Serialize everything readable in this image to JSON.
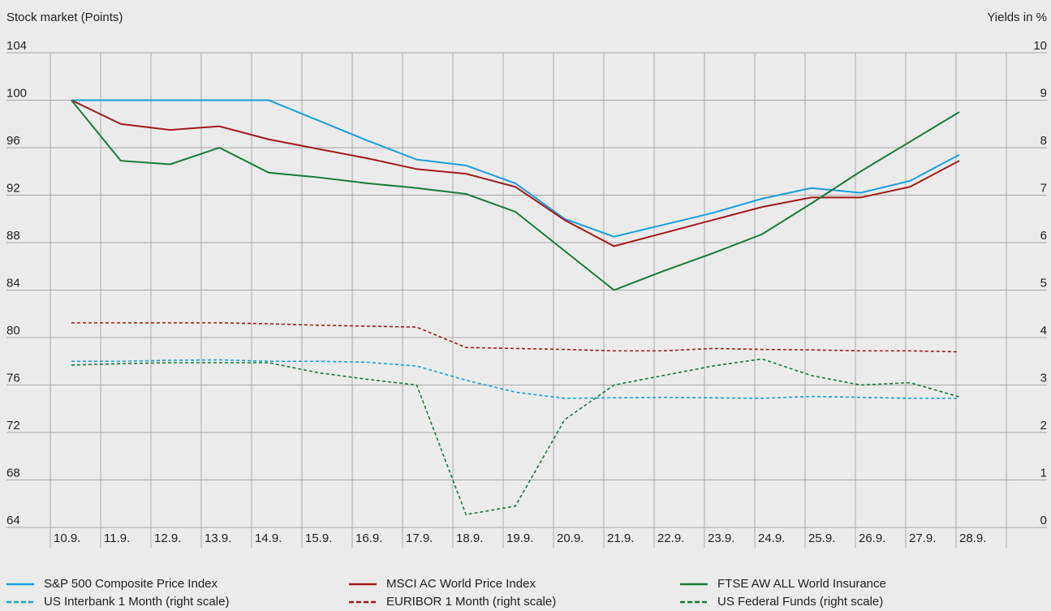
{
  "chart_data": {
    "type": "line",
    "y_label": "Stock market (Points)",
    "y2_label": "Yields in %",
    "categories": [
      "10.9.",
      "11.9.",
      "12.9.",
      "13.9.",
      "14.9.",
      "15.9.",
      "16.9.",
      "17.9.",
      "18.9.",
      "19.9.",
      "20.9.",
      "21.9.",
      "22.9.",
      "23.9.",
      "24.9.",
      "25.9.",
      "26.9.",
      "27.9.",
      "28.9."
    ],
    "ylim": [
      64,
      104
    ],
    "yticks": [
      64,
      68,
      72,
      76,
      80,
      84,
      88,
      92,
      96,
      100,
      104
    ],
    "y2lim": [
      0,
      10
    ],
    "y2ticks": [
      0,
      1,
      2,
      3,
      4,
      5,
      6,
      7,
      8,
      9,
      10
    ],
    "grid": true,
    "series": [
      {
        "name": "S&P 500 Composite Price Index",
        "color": "#1a9ed9",
        "style": "solid",
        "values": [
          100,
          100,
          100,
          100,
          100,
          98.3,
          96.6,
          95.0,
          94.5,
          93.0,
          90.0,
          88.5,
          89.5,
          90.5,
          91.7,
          92.6,
          92.2,
          93.2,
          95.4
        ]
      },
      {
        "name": "MSCI AC World Price Index",
        "color": "#a01c1c",
        "style": "solid",
        "values": [
          100,
          98.0,
          97.5,
          97.8,
          96.7,
          95.9,
          95.1,
          94.2,
          93.8,
          92.7,
          89.9,
          87.7,
          88.8,
          89.9,
          91.0,
          91.8,
          91.8,
          92.7,
          94.9
        ]
      },
      {
        "name": "FTSE AW ALL World Insurance",
        "color": "#1a7a3a",
        "style": "solid",
        "values": [
          100,
          94.9,
          94.6,
          96.0,
          93.9,
          93.5,
          93.0,
          92.6,
          92.1,
          90.6,
          87.3,
          84.0,
          85.6,
          87.1,
          88.7,
          91.3,
          94.0,
          96.5,
          99.0
        ]
      },
      {
        "name": "US Interbank 1 Month (right scale)",
        "color": "#1a9ed9",
        "style": "dashed",
        "axis": "y2",
        "values": [
          3.5,
          3.5,
          3.52,
          3.53,
          3.5,
          3.5,
          3.48,
          3.4,
          3.1,
          2.85,
          2.72,
          2.73,
          2.74,
          2.73,
          2.72,
          2.76,
          2.74,
          2.72,
          2.72
        ]
      },
      {
        "name": "EURIBOR 1 Month (right scale)",
        "color": "#a01c1c",
        "style": "dashed",
        "axis": "y2",
        "values": [
          4.31,
          4.31,
          4.31,
          4.31,
          4.29,
          4.26,
          4.24,
          4.22,
          3.79,
          3.77,
          3.75,
          3.72,
          3.72,
          3.77,
          3.75,
          3.74,
          3.72,
          3.72,
          3.7
        ]
      },
      {
        "name": "US Federal Funds (right scale)",
        "color": "#1a7a3a",
        "style": "dashed",
        "axis": "y2",
        "values": [
          3.42,
          3.45,
          3.47,
          3.47,
          3.47,
          3.26,
          3.12,
          3.0,
          0.27,
          0.45,
          2.27,
          3.0,
          3.2,
          3.4,
          3.55,
          3.2,
          3.0,
          3.05,
          2.75
        ]
      }
    ]
  }
}
